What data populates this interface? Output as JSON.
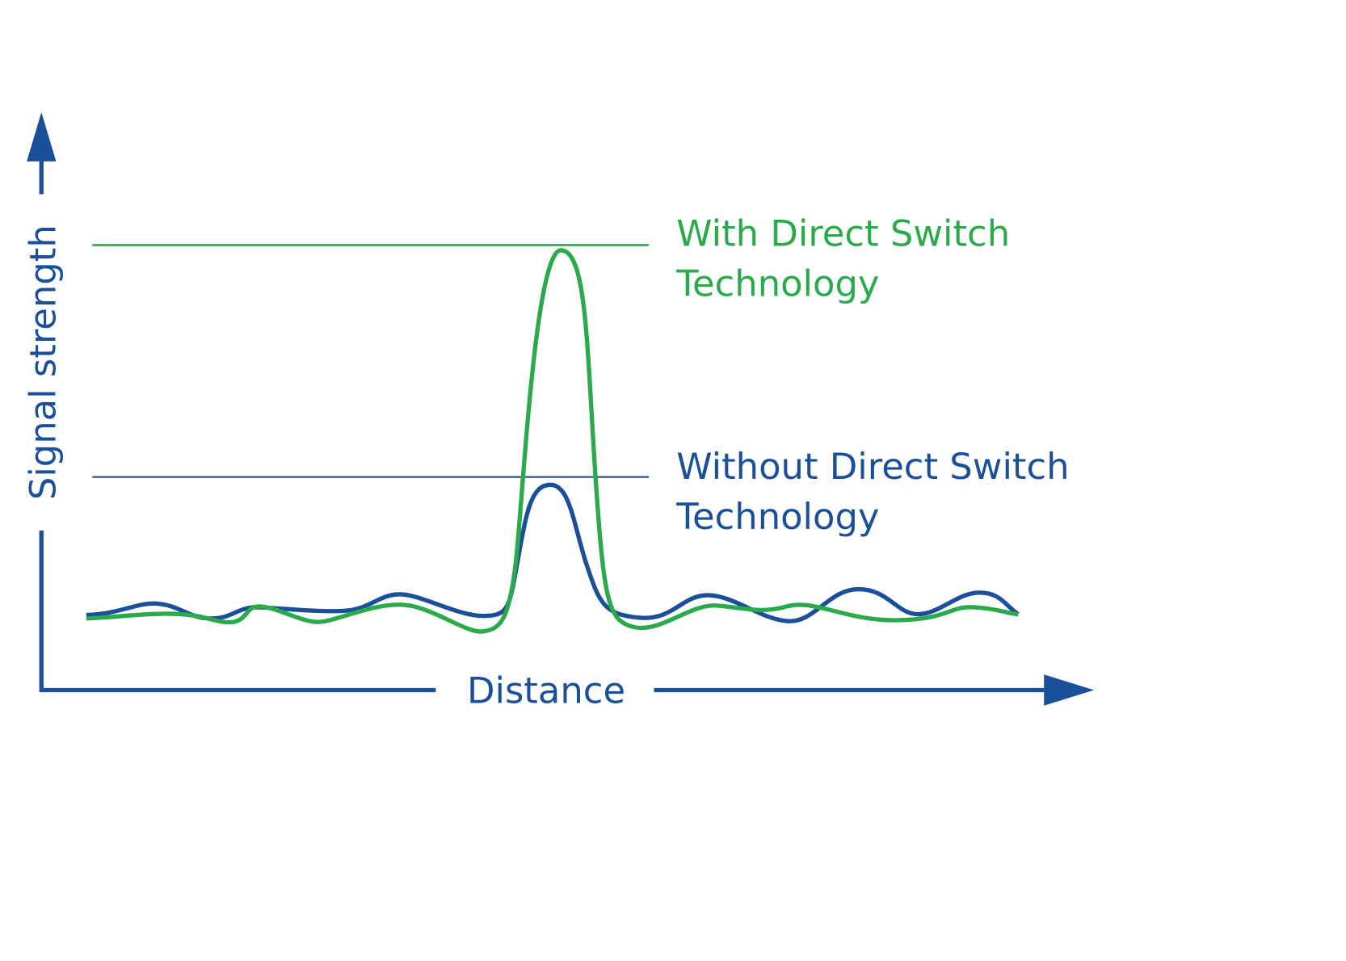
{
  "axes": {
    "y_label": "Signal strength",
    "x_label": "Distance"
  },
  "labels": [
    {
      "lines": [
        "With Direct Switch",
        "Technology"
      ]
    },
    {
      "lines": [
        "Without Direct Switch",
        "Technology"
      ]
    }
  ]
}
